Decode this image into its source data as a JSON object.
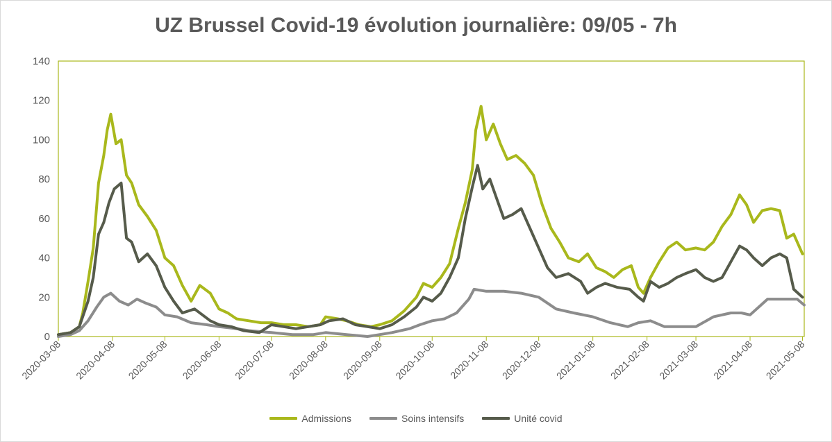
{
  "chart_data": {
    "type": "line",
    "title": "UZ Brussel Covid-19 évolution journalière: 09/05 - 7h",
    "xlabel": "",
    "ylabel": "",
    "ylim": [
      0,
      140
    ],
    "yticks": [
      0,
      20,
      40,
      60,
      80,
      100,
      120,
      140
    ],
    "xlim": [
      "2020-03-08",
      "2021-05-09"
    ],
    "xticks": [
      "2020-03-08",
      "2020-04-08",
      "2020-05-08",
      "2020-06-08",
      "2020-07-08",
      "2020-08-08",
      "2020-09-08",
      "2020-10-08",
      "2020-11-08",
      "2020-12-08",
      "2021-01-08",
      "2021-02-08",
      "2021-03-08",
      "2021-04-08",
      "2021-05-08"
    ],
    "grid": false,
    "legend_position": "bottom",
    "colors": {
      "admissions": "#a9b81c",
      "soins": "#8c8c8c",
      "unite": "#565b4b",
      "axis_frame": "#a9b81c",
      "text": "#595959"
    },
    "series": [
      {
        "name": "Admissions",
        "x": [
          "2020-03-08",
          "2020-03-15",
          "2020-03-20",
          "2020-03-22",
          "2020-03-25",
          "2020-03-28",
          "2020-03-31",
          "2020-04-03",
          "2020-04-05",
          "2020-04-07",
          "2020-04-10",
          "2020-04-13",
          "2020-04-16",
          "2020-04-19",
          "2020-04-23",
          "2020-04-28",
          "2020-05-03",
          "2020-05-08",
          "2020-05-13",
          "2020-05-18",
          "2020-05-23",
          "2020-05-28",
          "2020-06-03",
          "2020-06-08",
          "2020-06-13",
          "2020-06-18",
          "2020-06-25",
          "2020-07-02",
          "2020-07-08",
          "2020-07-15",
          "2020-07-22",
          "2020-07-29",
          "2020-08-05",
          "2020-08-08",
          "2020-08-15",
          "2020-08-20",
          "2020-08-27",
          "2020-09-03",
          "2020-09-08",
          "2020-09-15",
          "2020-09-22",
          "2020-09-29",
          "2020-10-03",
          "2020-10-08",
          "2020-10-13",
          "2020-10-18",
          "2020-10-23",
          "2020-10-27",
          "2020-10-31",
          "2020-11-02",
          "2020-11-05",
          "2020-11-08",
          "2020-11-12",
          "2020-11-16",
          "2020-11-20",
          "2020-11-25",
          "2020-11-30",
          "2020-12-05",
          "2020-12-10",
          "2020-12-15",
          "2020-12-20",
          "2020-12-25",
          "2020-12-31",
          "2021-01-05",
          "2021-01-10",
          "2021-01-15",
          "2021-01-20",
          "2021-01-25",
          "2021-01-30",
          "2021-02-03",
          "2021-02-06",
          "2021-02-10",
          "2021-02-15",
          "2021-02-20",
          "2021-02-25",
          "2021-03-02",
          "2021-03-08",
          "2021-03-13",
          "2021-03-18",
          "2021-03-23",
          "2021-03-28",
          "2021-04-02",
          "2021-04-06",
          "2021-04-10",
          "2021-04-15",
          "2021-04-20",
          "2021-04-25",
          "2021-04-29",
          "2021-05-03",
          "2021-05-08"
        ],
        "values": [
          1,
          2,
          5,
          12,
          28,
          45,
          78,
          92,
          105,
          113,
          98,
          100,
          82,
          78,
          67,
          61,
          54,
          40,
          36,
          26,
          18,
          26,
          22,
          14,
          12,
          9,
          8,
          7,
          7,
          6,
          6,
          5,
          6,
          10,
          9,
          8,
          6,
          5,
          6,
          8,
          13,
          20,
          27,
          25,
          30,
          37,
          55,
          68,
          85,
          105,
          117,
          100,
          108,
          98,
          90,
          92,
          88,
          82,
          67,
          55,
          48,
          40,
          38,
          42,
          35,
          33,
          30,
          34,
          36,
          25,
          22,
          30,
          38,
          45,
          48,
          44,
          45,
          44,
          48,
          56,
          62,
          72,
          67,
          58,
          64,
          65,
          64,
          50,
          52,
          42
        ]
      },
      {
        "name": "Soins intensifs",
        "x": [
          "2020-03-08",
          "2020-03-15",
          "2020-03-20",
          "2020-03-25",
          "2020-03-30",
          "2020-04-03",
          "2020-04-07",
          "2020-04-12",
          "2020-04-17",
          "2020-04-22",
          "2020-04-27",
          "2020-05-03",
          "2020-05-08",
          "2020-05-15",
          "2020-05-23",
          "2020-06-01",
          "2020-06-08",
          "2020-06-18",
          "2020-06-25",
          "2020-07-08",
          "2020-07-20",
          "2020-08-01",
          "2020-08-08",
          "2020-08-20",
          "2020-09-01",
          "2020-09-08",
          "2020-09-15",
          "2020-09-25",
          "2020-10-01",
          "2020-10-08",
          "2020-10-15",
          "2020-10-22",
          "2020-10-29",
          "2020-11-01",
          "2020-11-08",
          "2020-11-18",
          "2020-11-28",
          "2020-12-08",
          "2020-12-18",
          "2020-12-28",
          "2021-01-08",
          "2021-01-18",
          "2021-01-28",
          "2021-02-03",
          "2021-02-10",
          "2021-02-18",
          "2021-02-28",
          "2021-03-08",
          "2021-03-18",
          "2021-03-28",
          "2021-04-03",
          "2021-04-08",
          "2021-04-18",
          "2021-04-28",
          "2021-05-05",
          "2021-05-09"
        ],
        "values": [
          0,
          1,
          3,
          8,
          15,
          20,
          22,
          18,
          16,
          19,
          17,
          15,
          11,
          10,
          7,
          6,
          5,
          4,
          3,
          2,
          1,
          1,
          2,
          1,
          0,
          1,
          2,
          4,
          6,
          8,
          9,
          12,
          19,
          24,
          23,
          23,
          22,
          20,
          14,
          12,
          10,
          7,
          5,
          7,
          8,
          5,
          5,
          5,
          10,
          12,
          12,
          11,
          19,
          19,
          19,
          16
        ]
      },
      {
        "name": "Unité covid",
        "x": [
          "2020-03-08",
          "2020-03-15",
          "2020-03-20",
          "2020-03-25",
          "2020-03-28",
          "2020-03-31",
          "2020-04-03",
          "2020-04-06",
          "2020-04-09",
          "2020-04-13",
          "2020-04-16",
          "2020-04-19",
          "2020-04-23",
          "2020-04-28",
          "2020-05-03",
          "2020-05-08",
          "2020-05-13",
          "2020-05-18",
          "2020-05-25",
          "2020-06-03",
          "2020-06-08",
          "2020-06-15",
          "2020-06-22",
          "2020-07-01",
          "2020-07-08",
          "2020-07-15",
          "2020-07-22",
          "2020-07-29",
          "2020-08-05",
          "2020-08-10",
          "2020-08-18",
          "2020-08-25",
          "2020-09-01",
          "2020-09-08",
          "2020-09-15",
          "2020-09-22",
          "2020-09-29",
          "2020-10-03",
          "2020-10-08",
          "2020-10-13",
          "2020-10-18",
          "2020-10-23",
          "2020-10-27",
          "2020-10-31",
          "2020-11-03",
          "2020-11-06",
          "2020-11-10",
          "2020-11-14",
          "2020-11-18",
          "2020-11-23",
          "2020-11-28",
          "2020-12-03",
          "2020-12-08",
          "2020-12-13",
          "2020-12-18",
          "2020-12-25",
          "2021-01-01",
          "2021-01-05",
          "2021-01-10",
          "2021-01-15",
          "2021-01-22",
          "2021-01-29",
          "2021-02-03",
          "2021-02-06",
          "2021-02-10",
          "2021-02-15",
          "2021-02-20",
          "2021-02-25",
          "2021-03-02",
          "2021-03-08",
          "2021-03-13",
          "2021-03-18",
          "2021-03-23",
          "2021-03-28",
          "2021-04-02",
          "2021-04-06",
          "2021-04-10",
          "2021-04-15",
          "2021-04-20",
          "2021-04-25",
          "2021-04-29",
          "2021-05-03",
          "2021-05-08"
        ],
        "values": [
          1,
          2,
          5,
          18,
          30,
          52,
          58,
          68,
          75,
          78,
          50,
          48,
          38,
          42,
          36,
          25,
          18,
          12,
          14,
          8,
          6,
          5,
          3,
          2,
          6,
          5,
          4,
          5,
          6,
          8,
          9,
          6,
          5,
          4,
          6,
          10,
          15,
          20,
          18,
          22,
          30,
          40,
          60,
          76,
          87,
          75,
          80,
          70,
          60,
          62,
          65,
          55,
          45,
          35,
          30,
          32,
          28,
          22,
          25,
          27,
          25,
          24,
          20,
          18,
          28,
          25,
          27,
          30,
          32,
          34,
          30,
          28,
          30,
          38,
          46,
          44,
          40,
          36,
          40,
          42,
          40,
          24,
          20
        ]
      }
    ]
  }
}
